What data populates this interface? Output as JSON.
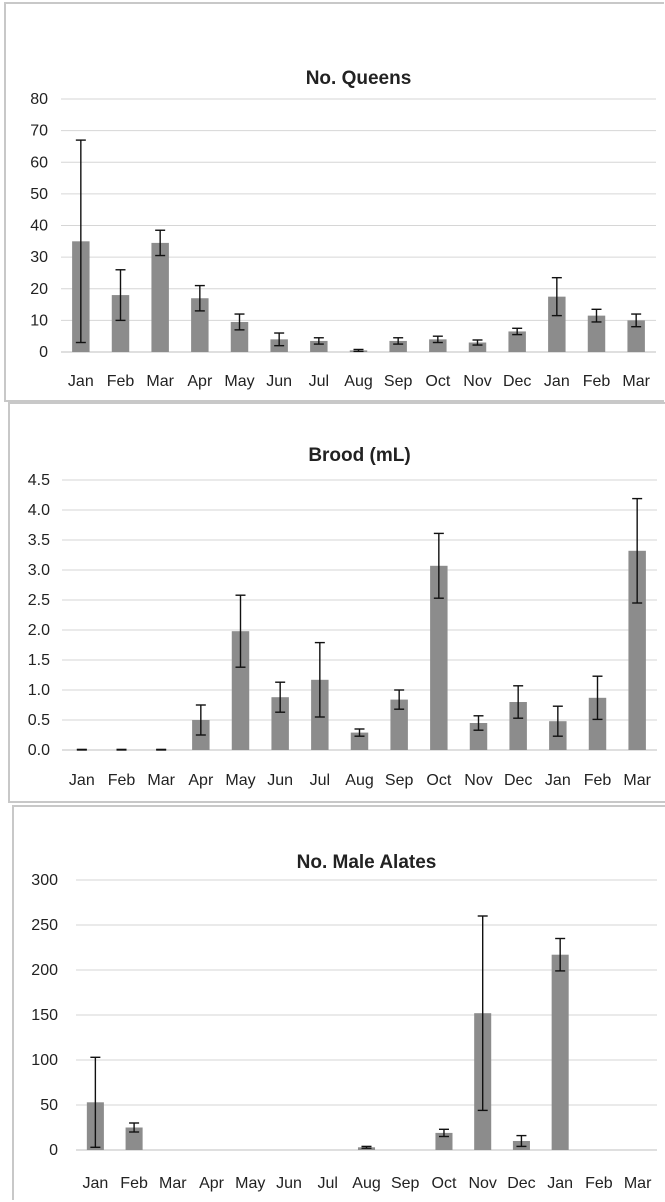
{
  "chart_data": [
    {
      "type": "bar",
      "title": "No. Queens",
      "categories": [
        "Jan",
        "Feb",
        "Mar",
        "Apr",
        "May",
        "Jun",
        "Jul",
        "Aug",
        "Sep",
        "Oct",
        "Nov",
        "Dec",
        "Jan",
        "Feb",
        "Mar"
      ],
      "values": [
        35,
        18,
        34.5,
        17,
        9.5,
        4,
        3.5,
        0.5,
        3.5,
        4,
        3,
        6.5,
        17.5,
        11.5,
        10
      ],
      "errors": [
        32,
        8,
        4,
        4,
        2.5,
        2,
        1,
        0.3,
        1,
        1,
        0.8,
        1,
        6,
        2,
        2
      ],
      "ylim": [
        0,
        80
      ],
      "yticks": [
        "0",
        "10",
        "20",
        "30",
        "40",
        "50",
        "60",
        "70",
        "80"
      ],
      "ytick_values": [
        0,
        10,
        20,
        30,
        40,
        50,
        60,
        70,
        80
      ],
      "grid": true
    },
    {
      "type": "bar",
      "title": "Brood (mL)",
      "categories": [
        "Jan",
        "Feb",
        "Mar",
        "Apr",
        "May",
        "Jun",
        "Jul",
        "Aug",
        "Sep",
        "Oct",
        "Nov",
        "Dec",
        "Jan",
        "Feb",
        "Mar"
      ],
      "values": [
        0,
        0,
        0,
        0.5,
        1.98,
        0.88,
        1.17,
        0.29,
        0.84,
        3.07,
        0.45,
        0.8,
        0.48,
        0.87,
        3.32
      ],
      "errors": [
        0.01,
        0.01,
        0.01,
        0.25,
        0.6,
        0.25,
        0.62,
        0.06,
        0.16,
        0.54,
        0.12,
        0.27,
        0.25,
        0.36,
        0.87
      ],
      "ylim": [
        0,
        4.5
      ],
      "yticks": [
        "0.0",
        "0.5",
        "1.0",
        "1.5",
        "2.0",
        "2.5",
        "3.0",
        "3.5",
        "4.0",
        "4.5"
      ],
      "ytick_values": [
        0,
        0.5,
        1,
        1.5,
        2,
        2.5,
        3,
        3.5,
        4,
        4.5
      ],
      "grid": true
    },
    {
      "type": "bar",
      "title": "No. Male Alates",
      "categories": [
        "Jan",
        "Feb",
        "Mar",
        "Apr",
        "May",
        "Jun",
        "Jul",
        "Aug",
        "Sep",
        "Oct",
        "Nov",
        "Dec",
        "Jan",
        "Feb",
        "Mar"
      ],
      "values": [
        53,
        25,
        0,
        0,
        0,
        0,
        0,
        3,
        0,
        19,
        152,
        10,
        217,
        0,
        0
      ],
      "errors": [
        50,
        5,
        null,
        null,
        null,
        null,
        null,
        1,
        null,
        4,
        108,
        6,
        18,
        null,
        null
      ],
      "ylim": [
        0,
        300
      ],
      "yticks": [
        "0",
        "50",
        "100",
        "150",
        "200",
        "250",
        "300"
      ],
      "ytick_values": [
        0,
        50,
        100,
        150,
        200,
        250,
        300
      ],
      "grid": true
    }
  ]
}
